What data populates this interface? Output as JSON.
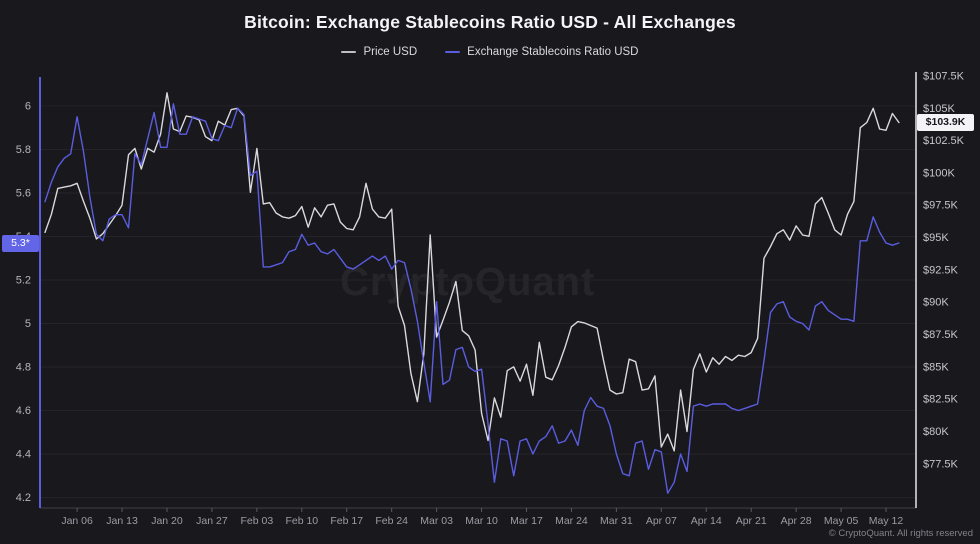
{
  "header": {
    "title": "Bitcoin: Exchange Stablecoins Ratio USD - All Exchanges",
    "legend": [
      {
        "label": "Price USD"
      },
      {
        "label": "Exchange Stablecoins Ratio USD"
      }
    ]
  },
  "watermark": "CryptoQuant",
  "footer": {
    "copyright": "© CryptoQuant. All rights reserved"
  },
  "badges": {
    "ratio_current": {
      "text": "5.3*",
      "value": 5.37
    },
    "price_current": {
      "text": "$103.9K",
      "value": 103.9
    }
  },
  "colors": {
    "background": "#18181d",
    "price_line": "#d9d9de",
    "ratio_line": "#5a5de0",
    "grid": "#232329",
    "axis_left": "#5a5de0",
    "axis_right": "#d9d9de",
    "axis_bottom": "#3f3f47",
    "x_tick": "#5a5a62",
    "x_tick_text": "#9c9ca5",
    "left_tick_text": "#b5b5bd",
    "right_tick_text": "#c6c6cd",
    "badge_ratio_bg": "#6165e6",
    "badge_ratio_text": "#ffffff",
    "badge_price_bg": "#f4f4f6",
    "badge_price_text": "#17171c"
  },
  "chart_data": {
    "type": "line",
    "title": "Bitcoin: Exchange Stablecoins Ratio USD - All Exchanges",
    "x_start_date": "Jan 01",
    "x_end_date": "May 14",
    "x_frequency": "daily",
    "x_tick_labels": [
      "Jan 06",
      "Jan 13",
      "Jan 20",
      "Jan 27",
      "Feb 03",
      "Feb 10",
      "Feb 17",
      "Feb 24",
      "Mar 03",
      "Mar 10",
      "Mar 17",
      "Mar 24",
      "Mar 31",
      "Apr 07",
      "Apr 14",
      "Apr 21",
      "Apr 28",
      "May 05",
      "May 12"
    ],
    "x_tick_day_offsets": [
      5,
      12,
      19,
      26,
      33,
      40,
      47,
      54,
      61,
      68,
      75,
      82,
      89,
      96,
      103,
      110,
      117,
      124,
      131
    ],
    "grid": "horizontal-only",
    "legend_position": "top",
    "left_axis": {
      "title": "Exchange Stablecoins Ratio USD",
      "tick_labels": [
        "6",
        "5.8",
        "5.6",
        "5.4",
        "5.2",
        "5",
        "4.8",
        "4.6",
        "4.4",
        "4.2"
      ],
      "tick_values": [
        6,
        5.8,
        5.6,
        5.4,
        5.2,
        5,
        4.8,
        4.6,
        4.4,
        4.2
      ],
      "range": [
        4.152,
        6.133
      ]
    },
    "right_axis": {
      "title": "Price USD",
      "tick_labels": [
        "$107.5K",
        "$105K",
        "$102.5K",
        "$100K",
        "$97.5K",
        "$95K",
        "$92.5K",
        "$90K",
        "$87.5K",
        "$85K",
        "$82.5K",
        "$80K",
        "$77.5K"
      ],
      "tick_values": [
        107.5,
        105,
        102.5,
        100,
        97.5,
        95,
        92.5,
        90,
        87.5,
        85,
        82.5,
        80,
        77.5
      ],
      "range": [
        74.08,
        107.42
      ],
      "unit": "USD thousands"
    },
    "series": [
      {
        "name": "Price USD",
        "axis": "right",
        "color": "#d9d9de",
        "values": [
          95.4,
          96.8,
          98.8,
          98.9,
          99.0,
          99.2,
          97.8,
          96.5,
          94.9,
          95.3,
          96.0,
          96.7,
          97.5,
          101.4,
          101.9,
          100.3,
          101.9,
          101.6,
          103.0,
          106.2,
          103.4,
          103.2,
          104.4,
          104.3,
          104.1,
          102.8,
          102.5,
          104.0,
          103.7,
          104.9,
          105.0,
          104.4,
          98.5,
          101.9,
          97.6,
          97.7,
          96.9,
          96.6,
          96.5,
          96.7,
          97.4,
          95.8,
          97.3,
          96.6,
          97.5,
          97.6,
          96.2,
          95.7,
          95.6,
          96.6,
          99.2,
          97.2,
          96.6,
          96.5,
          97.2,
          89.7,
          88.2,
          84.5,
          82.3,
          86.0,
          95.2,
          87.3,
          88.6,
          90.0,
          91.6,
          87.8,
          87.4,
          86.3,
          81.4,
          79.3,
          82.6,
          81.1,
          84.7,
          85.0,
          83.9,
          85.2,
          82.8,
          86.9,
          84.2,
          84.0,
          85.1,
          86.5,
          88.1,
          88.5,
          88.4,
          88.2,
          88.0,
          85.5,
          83.2,
          82.9,
          83.0,
          85.6,
          85.4,
          83.2,
          83.3,
          84.3,
          78.8,
          79.8,
          78.5,
          83.2,
          80.0,
          84.8,
          86.0,
          84.6,
          85.7,
          85.2,
          85.8,
          85.5,
          85.9,
          85.8,
          86.1,
          87.2,
          93.4,
          94.3,
          95.3,
          95.6,
          94.8,
          95.9,
          95.2,
          95.1,
          97.6,
          98.1,
          96.9,
          95.6,
          95.2,
          96.8,
          97.8,
          103.5,
          103.9,
          105.0,
          103.4,
          103.3,
          104.6,
          103.9
        ]
      },
      {
        "name": "Exchange Stablecoins Ratio USD",
        "axis": "left",
        "color": "#5a5de0",
        "values": [
          5.56,
          5.65,
          5.72,
          5.76,
          5.78,
          5.95,
          5.79,
          5.58,
          5.41,
          5.38,
          5.48,
          5.5,
          5.5,
          5.44,
          5.78,
          5.73,
          5.85,
          5.97,
          5.81,
          5.81,
          6.01,
          5.87,
          5.87,
          5.95,
          5.94,
          5.93,
          5.85,
          5.84,
          5.91,
          5.9,
          5.99,
          5.96,
          5.68,
          5.7,
          5.26,
          5.26,
          5.27,
          5.28,
          5.33,
          5.34,
          5.41,
          5.36,
          5.37,
          5.33,
          5.32,
          5.34,
          5.3,
          5.26,
          5.25,
          5.27,
          5.29,
          5.31,
          5.29,
          5.31,
          5.25,
          5.29,
          5.28,
          5.16,
          5.01,
          4.82,
          4.64,
          5.1,
          4.72,
          4.74,
          4.88,
          4.89,
          4.8,
          4.78,
          4.79,
          4.54,
          4.27,
          4.47,
          4.46,
          4.3,
          4.46,
          4.47,
          4.4,
          4.46,
          4.48,
          4.53,
          4.45,
          4.46,
          4.51,
          4.44,
          4.6,
          4.66,
          4.62,
          4.61,
          4.53,
          4.4,
          4.31,
          4.3,
          4.45,
          4.46,
          4.33,
          4.42,
          4.41,
          4.22,
          4.27,
          4.4,
          4.32,
          4.62,
          4.63,
          4.62,
          4.63,
          4.63,
          4.63,
          4.61,
          4.6,
          4.61,
          4.62,
          4.63,
          4.83,
          5.05,
          5.09,
          5.1,
          5.03,
          5.01,
          5.0,
          4.97,
          5.08,
          5.1,
          5.06,
          5.04,
          5.02,
          5.02,
          5.01,
          5.38,
          5.38,
          5.49,
          5.42,
          5.37,
          5.36,
          5.37
        ]
      }
    ]
  }
}
